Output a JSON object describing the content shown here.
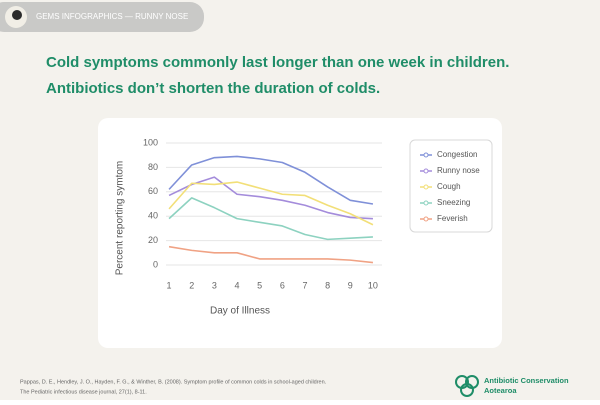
{
  "header": {
    "label": "GEMS INFOGRAPHICS — RUNNY NOSE"
  },
  "headline": [
    "Cold symptoms commonly last longer than one week in children.",
    "Antibiotics don’t shorten the duration of colds."
  ],
  "chart_data": {
    "type": "line",
    "x_label": "Day of Illness",
    "y_label": "Percent reporting symtom",
    "x": [
      1,
      2,
      3,
      4,
      5,
      6,
      7,
      8,
      9,
      10
    ],
    "xlim": [
      0.6,
      10.4
    ],
    "xticks": [
      1,
      2,
      3,
      4,
      5,
      6,
      7,
      8,
      9,
      10
    ],
    "ylim": [
      0,
      100
    ],
    "yticks": [
      0,
      20,
      40,
      60,
      80,
      100
    ],
    "grid": true,
    "legend": "right",
    "series": [
      {
        "name": "Congestion",
        "color": "#7f90d8",
        "values": [
          62,
          82,
          88,
          89,
          87,
          84,
          76,
          64,
          53,
          50
        ]
      },
      {
        "name": "Runny nose",
        "color": "#a48cdb",
        "values": [
          57,
          66,
          72,
          58,
          56,
          53,
          49,
          43,
          39,
          38
        ]
      },
      {
        "name": "Cough",
        "color": "#f2df78",
        "values": [
          46,
          67,
          66,
          68,
          63,
          58,
          57,
          49,
          42,
          33
        ]
      },
      {
        "name": "Sneezing",
        "color": "#8dd2c0",
        "values": [
          38,
          55,
          47,
          38,
          35,
          32,
          25,
          21,
          22,
          23
        ]
      },
      {
        "name": "Feverish",
        "color": "#f0a284",
        "values": [
          15,
          12,
          10,
          10,
          5,
          5,
          5,
          5,
          4,
          2
        ]
      }
    ]
  },
  "footer": {
    "citation": [
      "Pappas, D. E., Hendley, J. O., Hayden, F. G., & Winther, B. (2008). Symptom profile of common colds in school-aged children.",
      "The Pediatric infectious disease journal, 27(1), 8-11."
    ],
    "logo": [
      "Antibiotic Conservation",
      "Aotearoa"
    ]
  }
}
